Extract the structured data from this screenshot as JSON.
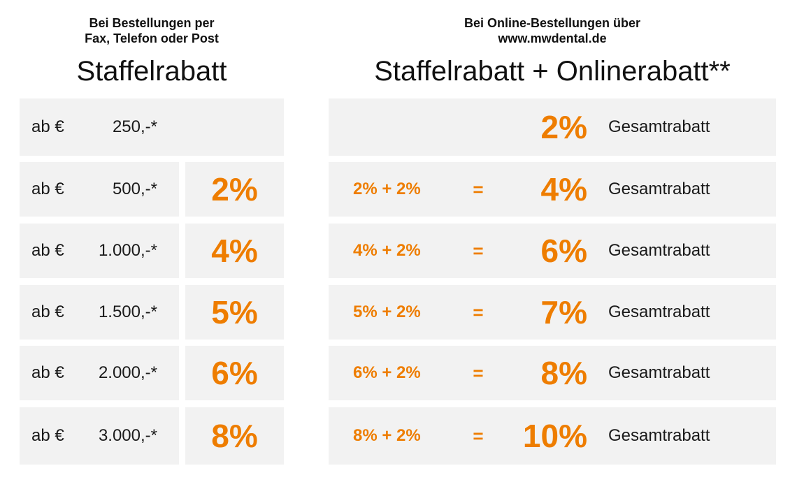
{
  "left_header": {
    "subtitle_line1": "Bei Bestellungen per",
    "subtitle_line2": "Fax, Telefon oder Post",
    "title": "Staffelrabatt"
  },
  "right_header": {
    "subtitle_line1": "Bei Online-Bestellungen über",
    "subtitle_line2": "www.mwdental.de",
    "title": "Staffelrabatt + Onlinerabatt**"
  },
  "colors": {
    "accent": "#ee7d00",
    "cell_bg": "#f2f2f2",
    "text": "#1a1a1a"
  },
  "rows": [
    {
      "ab": "ab €",
      "amount": "250,-*",
      "discount": "",
      "calc": "",
      "equals": "",
      "total": "2%",
      "total_label": "Gesamtrabatt"
    },
    {
      "ab": "ab €",
      "amount": "500,-*",
      "discount": "2%",
      "calc": "2% + 2%",
      "equals": "=",
      "total": "4%",
      "total_label": "Gesamtrabatt"
    },
    {
      "ab": "ab €",
      "amount": "1.000,-*",
      "discount": "4%",
      "calc": "4% + 2%",
      "equals": "=",
      "total": "6%",
      "total_label": "Gesamtrabatt"
    },
    {
      "ab": "ab €",
      "amount": "1.500,-*",
      "discount": "5%",
      "calc": "5% + 2%",
      "equals": "=",
      "total": "7%",
      "total_label": "Gesamtrabatt"
    },
    {
      "ab": "ab €",
      "amount": "2.000,-*",
      "discount": "6%",
      "calc": "6% + 2%",
      "equals": "=",
      "total": "8%",
      "total_label": "Gesamtrabatt"
    },
    {
      "ab": "ab €",
      "amount": "3.000,-*",
      "discount": "8%",
      "calc": "8% + 2%",
      "equals": "=",
      "total": "10%",
      "total_label": "Gesamtrabatt"
    }
  ]
}
